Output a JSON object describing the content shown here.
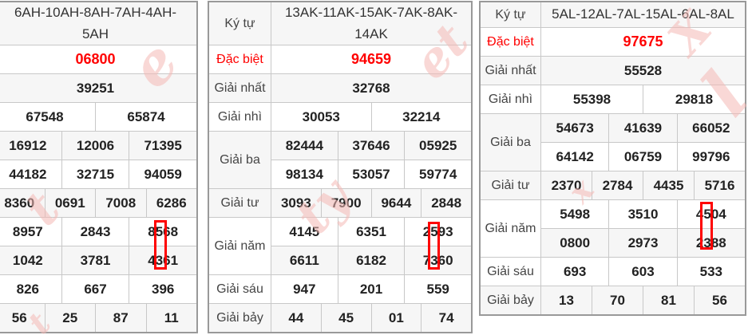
{
  "colors": {
    "special_red": "#ff0000",
    "highlight_box_red": "#fe0000",
    "row_stripe_gray": "#f6f6f6",
    "inner_border": "#c8c8c8",
    "outer_border": "#999999",
    "watermark_pink": "#f4b8b4"
  },
  "left_table": {
    "code": "6AH-10AH-8AH-7AH-4AH-5AH",
    "special": "06800",
    "first": "39251",
    "second": [
      "67548",
      "65874"
    ],
    "third": [
      [
        "16912",
        "12006",
        "71395"
      ],
      [
        "44182",
        "32715",
        "94059"
      ]
    ],
    "fourth": [
      "8360",
      "0691",
      "7008",
      "6286"
    ],
    "fifth": [
      [
        "8957",
        "2843",
        "8568"
      ],
      [
        "1042",
        "3781",
        "4361"
      ]
    ],
    "sixth": [
      "826",
      "667",
      "396"
    ],
    "seventh": [
      "56",
      "25",
      "87",
      "11"
    ]
  },
  "middle_table": {
    "labels": {
      "code": "Ký tự",
      "special": "Đặc biệt",
      "first": "Giải nhất",
      "second": "Giải nhì",
      "third": "Giải ba",
      "fourth": "Giải tư",
      "fifth": "Giải năm",
      "sixth": "Giải sáu",
      "seventh": "Giải bảy"
    },
    "code": "13AK-11AK-15AK-7AK-8AK-14AK",
    "special": "94659",
    "first": "32768",
    "second": [
      "30053",
      "32214"
    ],
    "third": [
      [
        "82444",
        "37646",
        "05925"
      ],
      [
        "98134",
        "53057",
        "59774"
      ]
    ],
    "fourth": [
      "3093",
      "7900",
      "9644",
      "2848"
    ],
    "fifth": [
      [
        "4145",
        "6351",
        "2593"
      ],
      [
        "6611",
        "6182",
        "7360"
      ]
    ],
    "sixth": [
      "947",
      "201",
      "559"
    ],
    "seventh": [
      "44",
      "45",
      "01",
      "74"
    ]
  },
  "right_table": {
    "labels": {
      "code": "Ký tự",
      "special": "Đặc biệt",
      "first": "Giải nhất",
      "second": "Giải nhì",
      "third": "Giải ba",
      "fourth": "Giải tư",
      "fifth": "Giải năm",
      "sixth": "Giải sáu",
      "seventh": "Giải bảy"
    },
    "code": "5AL-12AL-7AL-15AL-6AL-8AL",
    "special": "97675",
    "first": "55528",
    "second": [
      "55398",
      "29818"
    ],
    "third": [
      [
        "54673",
        "41639",
        "66052"
      ],
      [
        "64142",
        "06759",
        "99796"
      ]
    ],
    "fourth": [
      "2370",
      "2784",
      "4435",
      "5716"
    ],
    "fifth": [
      [
        "5498",
        "3510",
        "4504"
      ],
      [
        "0800",
        "2973",
        "2388"
      ]
    ],
    "sixth": [
      "693",
      "603",
      "533"
    ],
    "seventh": [
      "13",
      "70",
      "81",
      "56"
    ]
  },
  "watermark": {
    "fragments": [
      "e",
      "t",
      "et",
      "ty",
      "X",
      "l",
      "x",
      "t"
    ]
  }
}
